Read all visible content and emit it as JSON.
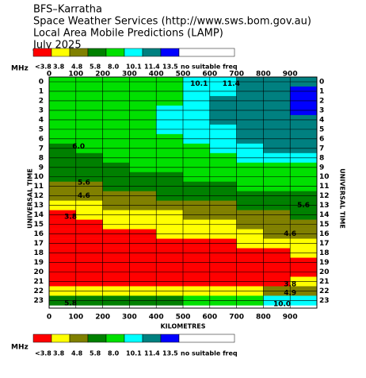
{
  "chart_data": {
    "type": "contour",
    "title_lines": [
      "BFS–Karratha",
      "Space Weather Services (http://www.sws.bom.gov.au)",
      "Local Area Mobile Predictions (LAMP)",
      "July 2025"
    ],
    "unit": "MHz",
    "x_label": "KILOMETRES",
    "y_label": "UNIVERSAL TIME",
    "xlim": [
      0,
      1000
    ],
    "ylim": [
      -0.5,
      23.8
    ],
    "xticks": [
      0,
      100,
      200,
      300,
      400,
      500,
      600,
      700,
      800,
      900
    ],
    "yticks": [
      0,
      1,
      2,
      3,
      4,
      5,
      6,
      7,
      8,
      9,
      10,
      11,
      12,
      13,
      14,
      15,
      16,
      17,
      18,
      19,
      20,
      21,
      22,
      23
    ],
    "grid": true,
    "scale": [
      {
        "label": "<3.8",
        "color": "#ff0000"
      },
      {
        "value": 3.8,
        "label": "3.8",
        "color": "#ffff00"
      },
      {
        "value": 4.8,
        "label": "4.8",
        "color": "#808000"
      },
      {
        "value": 5.8,
        "label": "5.8",
        "color": "#008000"
      },
      {
        "value": 8.0,
        "label": "8.0",
        "color": "#00e000"
      },
      {
        "value": 10.1,
        "label": "10.1",
        "color": "#00ffff"
      },
      {
        "value": 11.4,
        "label": "11.4",
        "color": "#008080"
      },
      {
        "value": 13.5,
        "label": "13.5",
        "color": "#0000ff"
      }
    ],
    "no_freq": {
      "label": "no suitable freq",
      "color": "#ffffff"
    },
    "x": [
      50,
      150,
      250,
      350,
      450,
      550,
      650,
      750,
      850,
      950
    ],
    "z": [
      [
        9,
        9,
        9,
        9,
        9,
        10.8,
        10.8,
        12.5,
        12.5,
        12.5
      ],
      [
        9,
        9,
        9,
        9,
        9,
        10.8,
        10.8,
        12.5,
        12.5,
        14
      ],
      [
        9,
        9,
        9,
        9,
        9,
        10.8,
        12.5,
        12.5,
        12.5,
        14
      ],
      [
        9,
        9,
        9,
        9,
        10.8,
        10.8,
        12.5,
        12.5,
        12.5,
        14
      ],
      [
        9,
        9,
        9,
        9,
        10.8,
        10.8,
        12.5,
        12.5,
        12.5,
        12.5
      ],
      [
        9,
        9,
        9,
        9,
        10.8,
        10.8,
        10.8,
        12.5,
        12.5,
        12.5
      ],
      [
        9,
        9,
        9,
        9,
        9,
        10.8,
        10.8,
        12.5,
        12.5,
        12.5
      ],
      [
        7,
        9,
        9,
        9,
        9,
        9,
        10.8,
        10.8,
        12.5,
        12.5
      ],
      [
        7,
        7,
        9,
        9,
        9,
        9,
        9,
        10.8,
        10.8,
        10.8
      ],
      [
        7,
        7,
        7,
        9,
        9,
        9,
        9,
        9,
        9,
        9
      ],
      [
        7,
        7,
        7,
        7,
        7,
        9,
        9,
        9,
        9,
        9
      ],
      [
        5.3,
        5.3,
        7,
        7,
        7,
        7,
        7,
        9,
        9,
        9
      ],
      [
        5.3,
        5.3,
        5.3,
        5.3,
        7,
        7,
        7,
        7,
        7,
        7
      ],
      [
        4.3,
        4.3,
        5.3,
        5.3,
        5.3,
        5.3,
        5.3,
        7,
        7,
        7
      ],
      [
        3.3,
        4.3,
        4.3,
        4.3,
        4.3,
        5.3,
        5.3,
        5.3,
        5.3,
        7
      ],
      [
        3.3,
        3.3,
        4.3,
        4.3,
        4.3,
        4.3,
        4.3,
        5.3,
        5.3,
        5.3
      ],
      [
        3.3,
        3.3,
        3.3,
        3.3,
        4.3,
        4.3,
        4.3,
        4.3,
        5.3,
        5.3
      ],
      [
        3.3,
        3.3,
        3.3,
        3.3,
        3.3,
        3.3,
        3.3,
        4.3,
        4.3,
        4.3
      ],
      [
        3.3,
        3.3,
        3.3,
        3.3,
        3.3,
        3.3,
        3.3,
        3.3,
        3.3,
        4.3
      ],
      [
        3.3,
        3.3,
        3.3,
        3.3,
        3.3,
        3.3,
        3.3,
        3.3,
        3.3,
        3.3
      ],
      [
        3.3,
        3.3,
        3.3,
        3.3,
        3.3,
        3.3,
        3.3,
        3.3,
        3.3,
        3.3
      ],
      [
        3.3,
        3.3,
        3.3,
        3.3,
        3.3,
        3.3,
        3.3,
        3.3,
        3.3,
        4.3
      ],
      [
        4.3,
        4.3,
        4.3,
        4.3,
        4.3,
        4.3,
        4.3,
        4.3,
        5.3,
        5.3
      ],
      [
        7,
        7,
        7,
        7,
        7,
        9,
        9,
        9,
        10.8,
        10.8
      ]
    ],
    "contour_labels": [
      {
        "text": "10.1",
        "x": 560,
        "y": 0.2
      },
      {
        "text": "11.4",
        "x": 680,
        "y": 0.2
      },
      {
        "text": "6.0",
        "x": 110,
        "y": 6.8
      },
      {
        "text": "5.6",
        "x": 130,
        "y": 10.6
      },
      {
        "text": "4.6",
        "x": 130,
        "y": 12
      },
      {
        "text": "3.8",
        "x": 80,
        "y": 14.2
      },
      {
        "text": "5.6",
        "x": 950,
        "y": 13
      },
      {
        "text": "4.6",
        "x": 900,
        "y": 16
      },
      {
        "text": "3.8",
        "x": 900,
        "y": 21.3
      },
      {
        "text": "4.9",
        "x": 900,
        "y": 22.2
      },
      {
        "text": "5.8",
        "x": 80,
        "y": 23.3
      },
      {
        "text": "10.0",
        "x": 870,
        "y": 23.4
      }
    ]
  }
}
